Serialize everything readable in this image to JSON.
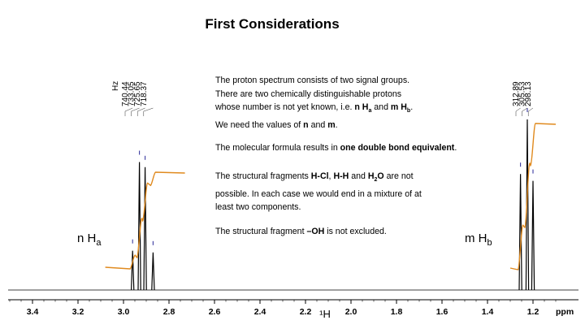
{
  "slide": {
    "title": "First Considerations",
    "paragraphs": [
      {
        "lines": [
          [
            {
              "t": "The proton spectrum consists of two signal groups."
            }
          ],
          [
            {
              "t": "There are two chemically distinguishable protons"
            }
          ],
          [
            {
              "t": "whose number is not yet known, i.e. "
            },
            {
              "t": "n H",
              "b": true
            },
            {
              "t": "a",
              "b": true,
              "sub": true
            },
            {
              "t": " and "
            },
            {
              "t": "m H",
              "b": true
            },
            {
              "t": "b",
              "b": true,
              "sub": true
            },
            {
              "t": "."
            }
          ],
          [
            {
              "t": "We need the values of "
            },
            {
              "t": "n",
              "b": true
            },
            {
              "t": " and "
            },
            {
              "t": "m",
              "b": true
            },
            {
              "t": "."
            }
          ]
        ]
      },
      {
        "lines": [
          [
            {
              "t": "The molecular formula results in "
            },
            {
              "t": "one double bond equivalent",
              "b": true
            },
            {
              "t": "."
            }
          ]
        ]
      },
      {
        "lines": [
          [
            {
              "t": "The structural fragments "
            },
            {
              "t": "H-Cl",
              "b": true
            },
            {
              "t": ", "
            },
            {
              "t": "H-H",
              "b": true
            },
            {
              "t": " and "
            },
            {
              "t": "H",
              "b": true
            },
            {
              "t": "2",
              "b": true,
              "sub": true
            },
            {
              "t": "O",
              "b": true
            },
            {
              "t": " are not"
            }
          ],
          [
            {
              "t": "possible. In each case we would end in a mixture of at"
            }
          ],
          [
            {
              "t": "least two components."
            }
          ]
        ]
      },
      {
        "lines": [
          [
            {
              "t": "The structural fragment "
            },
            {
              "t": "–OH",
              "b": true
            },
            {
              "t": " is not excluded."
            }
          ]
        ]
      }
    ],
    "labels": {
      "left": {
        "main": "n H",
        "sub": "a"
      },
      "right": {
        "main": "m H",
        "sub": "b"
      }
    }
  },
  "chart_data": {
    "type": "line",
    "xlabel": "¹H",
    "x_unit": "ppm",
    "xlim": [
      3.5,
      1.1
    ],
    "x_reversed": true,
    "x_ticks": [
      "3.4",
      "3.2",
      "3.0",
      "2.8",
      "2.6",
      "2.4",
      "2.2",
      "2.0",
      "1.8",
      "1.6",
      "1.4",
      "1.2"
    ],
    "peak_label_unit": "Hz",
    "peak_groups": [
      {
        "name": "n Ha",
        "peaks": [
          {
            "hz": "740.44",
            "ppm": 2.96,
            "height": 0.23
          },
          {
            "hz": "733.05",
            "ppm": 2.93,
            "height": 0.75
          },
          {
            "hz": "725.65",
            "ppm": 2.905,
            "height": 0.72
          },
          {
            "hz": "718.37",
            "ppm": 2.87,
            "height": 0.22
          }
        ]
      },
      {
        "name": "m Hb",
        "peaks": [
          {
            "hz": "312.89",
            "ppm": 1.255,
            "height": 0.68
          },
          {
            "hz": "305.53",
            "ppm": 1.225,
            "height": 1.0
          },
          {
            "hz": "298.13",
            "ppm": 1.2,
            "height": 0.64
          }
        ]
      }
    ],
    "integrals": [
      {
        "group": "n Ha",
        "from_ppm": 3.08,
        "to_ppm": 2.73
      },
      {
        "group": "m Hb",
        "from_ppm": 1.3,
        "to_ppm": 1.1
      }
    ],
    "colors": {
      "spectrum": "#000000",
      "integral": "#e08a1e",
      "peak_marker": "#3a3aa0"
    }
  }
}
